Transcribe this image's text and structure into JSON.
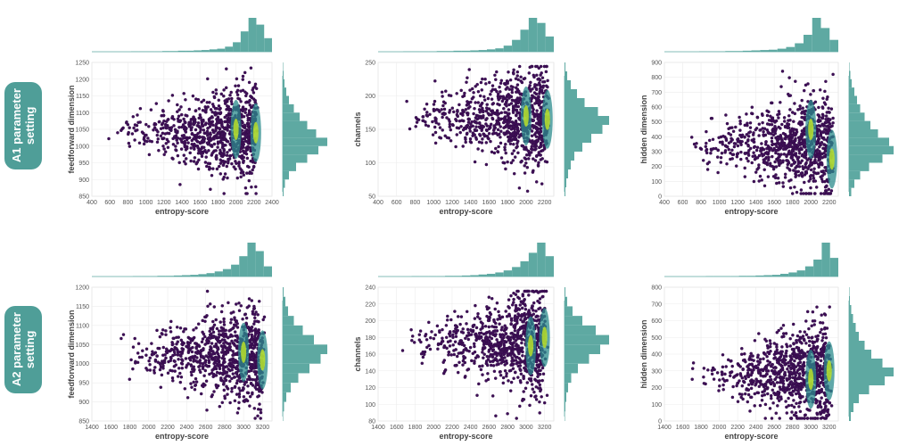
{
  "rows": [
    {
      "label": "A1 parameter\nsetting"
    },
    {
      "label": "A2 parameter\nsetting"
    }
  ],
  "colors": {
    "point": "#3f0f57",
    "point_edge": "#2a0a3f",
    "dense_mid": "#2b8b8c",
    "dense_high": "#b8de29",
    "marginal": "#5ea9a2",
    "row_label_bg": "#4f9e98"
  },
  "chart_data": [
    {
      "type": "scatter",
      "row": 0,
      "col": 0,
      "xlabel": "entropy-score",
      "ylabel": "feedforward dimension",
      "xlim": [
        400,
        2400
      ],
      "ylim": [
        850,
        1250
      ],
      "xticks": [
        400,
        600,
        800,
        1000,
        1200,
        1400,
        1600,
        1800,
        2000,
        2200,
        2400
      ],
      "yticks": [
        850,
        900,
        950,
        1000,
        1050,
        1100,
        1150,
        1200,
        1250
      ],
      "grid": true,
      "hotspots": [
        [
          2000,
          1050
        ],
        [
          2220,
          1040
        ]
      ],
      "top_hist": [
        0,
        0,
        0,
        0,
        0,
        1,
        1,
        1,
        1,
        2,
        2,
        3,
        3,
        4,
        5,
        7,
        9,
        15,
        28,
        60,
        100,
        80,
        40
      ],
      "right_hist": [
        2,
        5,
        14,
        30,
        55,
        80,
        100,
        75,
        55,
        38,
        25,
        14,
        8,
        4,
        2,
        1
      ]
    },
    {
      "type": "scatter",
      "row": 0,
      "col": 1,
      "xlabel": "entropy-score",
      "ylabel": "channels",
      "xlim": [
        400,
        2300
      ],
      "ylim": [
        50,
        250
      ],
      "xticks": [
        400,
        600,
        800,
        1000,
        1200,
        1400,
        1600,
        1800,
        2000,
        2200
      ],
      "yticks": [
        50,
        100,
        150,
        200,
        250
      ],
      "grid": true,
      "hotspots": [
        [
          2000,
          170
        ],
        [
          2230,
          165
        ]
      ],
      "top_hist": [
        0,
        0,
        0,
        1,
        1,
        1,
        1,
        2,
        2,
        3,
        3,
        4,
        5,
        7,
        10,
        18,
        35,
        65,
        100,
        85,
        45
      ],
      "right_hist": [
        2,
        4,
        8,
        14,
        22,
        40,
        60,
        85,
        100,
        75,
        45,
        28,
        14,
        6,
        2
      ]
    },
    {
      "type": "scatter",
      "row": 0,
      "col": 2,
      "xlabel": "entropy-score",
      "ylabel": "hidden dimension",
      "xlim": [
        400,
        2300
      ],
      "ylim": [
        0,
        900
      ],
      "xticks": [
        400,
        600,
        800,
        1000,
        1200,
        1400,
        1600,
        1800,
        2000,
        2200
      ],
      "yticks": [
        0,
        100,
        200,
        300,
        400,
        500,
        600,
        700,
        800,
        900
      ],
      "grid": true,
      "hotspots": [
        [
          2000,
          450
        ],
        [
          2230,
          250
        ]
      ],
      "top_hist": [
        0,
        0,
        0,
        0,
        1,
        1,
        1,
        2,
        2,
        3,
        4,
        5,
        6,
        9,
        14,
        25,
        50,
        100,
        70,
        35
      ],
      "right_hist": [
        5,
        12,
        25,
        45,
        75,
        100,
        90,
        65,
        48,
        35,
        25,
        18,
        12,
        6,
        3,
        1
      ]
    },
    {
      "type": "scatter",
      "row": 1,
      "col": 0,
      "xlabel": "entropy-score",
      "ylabel": "feedforward dimension",
      "xlim": [
        1400,
        3300
      ],
      "ylim": [
        850,
        1200
      ],
      "xticks": [
        1400,
        1600,
        1800,
        2000,
        2200,
        2400,
        2600,
        2800,
        3000,
        3200
      ],
      "yticks": [
        850,
        900,
        950,
        1000,
        1050,
        1100,
        1150,
        1200
      ],
      "grid": true,
      "hotspots": [
        [
          3000,
          1030
        ],
        [
          3200,
          1010
        ]
      ],
      "top_hist": [
        0,
        0,
        0,
        0,
        0,
        1,
        1,
        1,
        2,
        2,
        3,
        4,
        5,
        7,
        10,
        15,
        22,
        35,
        60,
        100,
        75,
        30
      ],
      "right_hist": [
        1,
        3,
        8,
        18,
        35,
        60,
        85,
        100,
        70,
        45,
        25,
        12,
        6,
        2
      ]
    },
    {
      "type": "scatter",
      "row": 1,
      "col": 1,
      "xlabel": "entropy-score",
      "ylabel": "channels",
      "xlim": [
        1400,
        3300
      ],
      "ylim": [
        80,
        240
      ],
      "xticks": [
        1400,
        1600,
        1800,
        2000,
        2200,
        2400,
        2600,
        2800,
        3000,
        3200
      ],
      "yticks": [
        80,
        100,
        120,
        140,
        160,
        180,
        200,
        220,
        240
      ],
      "grid": true,
      "hotspots": [
        [
          3050,
          170
        ],
        [
          3200,
          180
        ]
      ],
      "top_hist": [
        0,
        0,
        0,
        0,
        1,
        1,
        1,
        1,
        2,
        2,
        3,
        4,
        6,
        8,
        12,
        18,
        28,
        45,
        70,
        100,
        60
      ],
      "right_hist": [
        1,
        2,
        4,
        8,
        15,
        30,
        55,
        80,
        100,
        70,
        40,
        18,
        6,
        2
      ]
    },
    {
      "type": "scatter",
      "row": 1,
      "col": 2,
      "xlabel": "entropy-score",
      "ylabel": "hidden dimension",
      "xlim": [
        1400,
        3300
      ],
      "ylim": [
        0,
        800
      ],
      "xticks": [
        1400,
        1600,
        1800,
        2000,
        2200,
        2400,
        2600,
        2800,
        3000,
        3200
      ],
      "yticks": [
        0,
        100,
        200,
        300,
        400,
        500,
        600,
        700,
        800
      ],
      "grid": true,
      "hotspots": [
        [
          3000,
          250
        ],
        [
          3200,
          300
        ]
      ],
      "top_hist": [
        0,
        0,
        0,
        0,
        0,
        1,
        1,
        1,
        1,
        2,
        2,
        3,
        4,
        5,
        8,
        12,
        18,
        30,
        50,
        100,
        55
      ],
      "right_hist": [
        4,
        10,
        22,
        45,
        80,
        100,
        75,
        50,
        35,
        22,
        15,
        9,
        5,
        2,
        1
      ]
    }
  ]
}
